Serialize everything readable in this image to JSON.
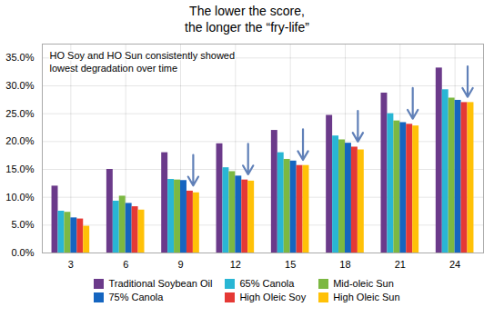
{
  "chart_data": {
    "type": "bar",
    "title": "The lower the score,\nthe longer the “fry-life”",
    "annotation": "HO Soy and HO Sun consistently showed\nlowest degradation over time",
    "categories": [
      "3",
      "6",
      "9",
      "12",
      "15",
      "18",
      "21",
      "24"
    ],
    "series": [
      {
        "name": "Traditional Soybean Oil",
        "color": "#6b3a8a",
        "values": [
          0.12,
          0.15,
          0.18,
          0.196,
          0.22,
          0.247,
          0.287,
          0.332
        ]
      },
      {
        "name": "65% Canola",
        "color": "#29b6d4",
        "values": [
          0.075,
          0.093,
          0.132,
          0.153,
          0.18,
          0.21,
          0.25,
          0.293
        ]
      },
      {
        "name": "Mid-oleic Sun",
        "color": "#7cb842",
        "values": [
          0.073,
          0.102,
          0.131,
          0.146,
          0.168,
          0.203,
          0.237,
          0.278
        ]
      },
      {
        "name": "75% Canola",
        "color": "#1565c0",
        "values": [
          0.063,
          0.089,
          0.13,
          0.138,
          0.165,
          0.197,
          0.234,
          0.274
        ]
      },
      {
        "name": "High Oleic Soy",
        "color": "#e53935",
        "values": [
          0.061,
          0.083,
          0.111,
          0.131,
          0.157,
          0.19,
          0.231,
          0.27
        ]
      },
      {
        "name": "High Oleic Sun",
        "color": "#ffc107",
        "values": [
          0.048,
          0.077,
          0.108,
          0.129,
          0.157,
          0.185,
          0.228,
          0.27
        ]
      }
    ],
    "arrows": {
      "categories": [
        "9",
        "12",
        "15",
        "18",
        "21",
        "24"
      ],
      "color": "#6080b8"
    },
    "ylim": [
      0,
      0.375
    ],
    "yticks": [
      {
        "value": 0.0,
        "label": "0.0%"
      },
      {
        "value": 0.05,
        "label": "5.0%"
      },
      {
        "value": 0.1,
        "label": "10.0%"
      },
      {
        "value": 0.15,
        "label": "15.0%"
      },
      {
        "value": 0.2,
        "label": "20.0%"
      },
      {
        "value": 0.25,
        "label": "25.0%"
      },
      {
        "value": 0.3,
        "label": "30.0%"
      },
      {
        "value": 0.35,
        "label": "35.0%"
      }
    ],
    "grid": true,
    "legend": "bottom"
  }
}
